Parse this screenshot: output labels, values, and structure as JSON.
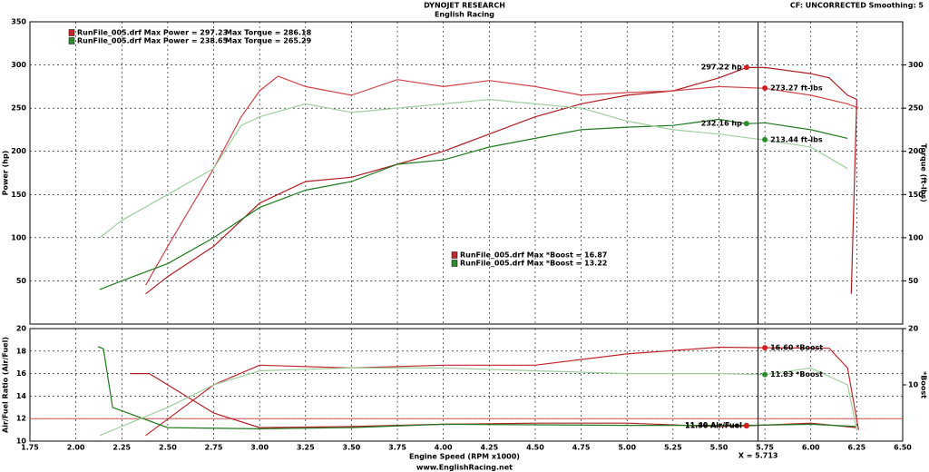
{
  "header": {
    "title": "DYNOJET RESEARCH",
    "subtitle": "English Racing",
    "settings": "CF: UNCORRECTED  Smoothing: 5",
    "footer": "www.EnglishRacing.net"
  },
  "chart_data": [
    {
      "type": "line",
      "ylabel": "Power (hp)",
      "y2label": "Torque (ft-lbs)",
      "xlim": [
        1.75,
        6.5
      ],
      "ylim": [
        0,
        350
      ],
      "y2lim": [
        0,
        350
      ],
      "yticks": [
        50,
        100,
        150,
        200,
        250,
        300,
        350
      ],
      "y2ticks": [
        50,
        100,
        150,
        200,
        250,
        300
      ],
      "grid": true,
      "legend": [
        {
          "color": "#c0282d",
          "texts": [
            "RunFile_005.drf Max Power = 297.23",
            "Max Torque = 286.18"
          ]
        },
        {
          "color": "#2e8b2e",
          "texts": [
            "RunFile_005.drf Max Power = 238.65",
            "Max Torque = 265.29"
          ]
        }
      ],
      "series": [
        {
          "color": "#b01e24",
          "x": [
            2.38,
            2.5,
            2.75,
            3.0,
            3.25,
            3.5,
            3.75,
            4.0,
            4.25,
            4.5,
            4.75,
            5.0,
            5.25,
            5.5,
            5.65,
            5.75,
            6.0,
            6.1,
            6.2,
            6.25,
            6.22
          ],
          "values": [
            35,
            55,
            90,
            140,
            165,
            170,
            185,
            200,
            220,
            240,
            255,
            265,
            270,
            285,
            297,
            297,
            290,
            285,
            265,
            260,
            35
          ]
        },
        {
          "color": "#d0454a",
          "axis": "y2",
          "x": [
            2.38,
            2.5,
            2.75,
            2.9,
            3.0,
            3.1,
            3.25,
            3.5,
            3.75,
            4.0,
            4.25,
            4.5,
            4.75,
            5.0,
            5.25,
            5.5,
            5.75,
            6.0,
            6.2,
            6.26
          ],
          "values": [
            45,
            90,
            180,
            240,
            270,
            287,
            275,
            265,
            283,
            275,
            282,
            275,
            265,
            268,
            270,
            275,
            273,
            265,
            255,
            250
          ]
        },
        {
          "color": "#1f7a1f",
          "x": [
            2.13,
            2.25,
            2.5,
            2.75,
            3.0,
            3.25,
            3.5,
            3.75,
            4.0,
            4.25,
            4.5,
            4.75,
            5.0,
            5.25,
            5.5,
            5.65,
            5.75,
            6.0,
            6.2
          ],
          "values": [
            40,
            50,
            70,
            100,
            135,
            155,
            165,
            185,
            190,
            205,
            215,
            225,
            228,
            230,
            237,
            232,
            233,
            225,
            215
          ]
        },
        {
          "color": "#9fcf9f",
          "axis": "y2",
          "x": [
            2.13,
            2.25,
            2.5,
            2.75,
            2.9,
            3.0,
            3.25,
            3.5,
            3.75,
            4.0,
            4.25,
            4.5,
            4.75,
            5.0,
            5.25,
            5.5,
            5.75,
            6.0,
            6.2
          ],
          "values": [
            100,
            120,
            150,
            180,
            230,
            240,
            255,
            245,
            250,
            255,
            260,
            255,
            250,
            235,
            225,
            220,
            213,
            205,
            180
          ]
        }
      ],
      "markers": [
        {
          "x": 5.65,
          "value": 297.22,
          "label": "297.22 hp",
          "color": "#d02020"
        },
        {
          "x": 5.75,
          "value": 273.27,
          "label": "273.27 ft-lbs",
          "color": "#d02020"
        },
        {
          "x": 5.65,
          "value": 232.16,
          "label": "232.16 hp",
          "color": "#2e8b2e"
        },
        {
          "x": 5.75,
          "value": 213.44,
          "label": "213.44 ft-lbs",
          "color": "#2e8b2e"
        }
      ],
      "notes": [
        {
          "color": "#c0282d",
          "text": "RunFile_005.drf Max *Boost = 16.87"
        },
        {
          "color": "#2e8b2e",
          "text": "RunFile_005.drf Max *Boost = 13.22"
        }
      ],
      "cursor": 5.713
    },
    {
      "type": "line",
      "ylabel": "Air/Fuel Ratio (Air/Fuel)",
      "y2label": "*Boost",
      "xlabel": "Engine Speed (RPM x1000)",
      "xlim": [
        1.75,
        6.5
      ],
      "ylim": [
        10,
        20
      ],
      "y2lim": [
        0,
        20
      ],
      "xticks": [
        1.75,
        {
          "value": 2,
          "label": "2.00"
        },
        2.25,
        {
          "value": 2.5,
          "label": "2.50"
        },
        2.75,
        {
          "value": 3,
          "label": "3.00"
        },
        3.25,
        {
          "value": 3.5,
          "label": "3.50"
        },
        3.75,
        {
          "value": 4,
          "label": "4.00"
        },
        4.25,
        {
          "value": 4.5,
          "label": "4.50"
        },
        4.75,
        {
          "value": 5,
          "label": "5.00"
        },
        5.25,
        {
          "value": 5.5,
          "label": "5.50"
        },
        5.75,
        {
          "value": 6,
          "label": "6.00"
        },
        6.25,
        {
          "value": 6.5,
          "label": "6.50"
        }
      ],
      "yticks": [
        10,
        12,
        14,
        16,
        18,
        20
      ],
      "y2ticks": [
        10,
        20
      ],
      "grid": true,
      "reference_line": 12,
      "series": [
        {
          "color": "#b01e24",
          "x": [
            2.3,
            2.4,
            2.5,
            2.75,
            3.0,
            3.5,
            4.0,
            4.5,
            5.0,
            5.5,
            5.65,
            6.0,
            6.25
          ],
          "values": [
            16,
            16,
            15,
            12.5,
            11.2,
            11.3,
            11.5,
            11.6,
            11.6,
            11.3,
            11.36,
            11.6,
            11.2
          ]
        },
        {
          "color": "#c0282d",
          "axis": "y2",
          "x": [
            2.38,
            2.75,
            3.0,
            3.5,
            4.0,
            4.5,
            5.0,
            5.5,
            5.75,
            6.1,
            6.2,
            6.26
          ],
          "values": [
            1,
            10,
            13.5,
            13,
            13.5,
            13.5,
            15.5,
            16.7,
            16.6,
            16.5,
            13,
            2
          ]
        },
        {
          "color": "#1f7a1f",
          "x": [
            2.12,
            2.15,
            2.2,
            2.5,
            3.0,
            3.5,
            4.0,
            5.0,
            5.65,
            6.0,
            6.25
          ],
          "values": [
            18.4,
            18.2,
            13,
            11.2,
            11.1,
            11.2,
            11.5,
            11.4,
            11.4,
            11.5,
            11.3
          ]
        },
        {
          "color": "#9fcf9f",
          "axis": "y2",
          "x": [
            2.13,
            2.5,
            2.75,
            3.0,
            3.5,
            4.0,
            4.5,
            5.0,
            5.5,
            5.75,
            6.0,
            6.2,
            6.25
          ],
          "values": [
            1,
            6,
            10,
            12.5,
            13,
            13,
            12.5,
            12,
            12,
            11.83,
            13,
            10,
            2
          ]
        }
      ],
      "markers": [
        {
          "x": 5.75,
          "value": 16.6,
          "label": "16.60 *Boost",
          "color": "#d02020",
          "axis": "y2"
        },
        {
          "x": 5.75,
          "value": 11.83,
          "label": "11.83 *Boost",
          "color": "#2e8b2e",
          "axis": "y2"
        },
        {
          "x": 5.65,
          "value": 11.4,
          "label": "11.40 Air/Fuel",
          "color": "#2e8b2e"
        },
        {
          "x": 5.65,
          "value": 11.36,
          "label": "11.36 Air/Fuel",
          "color": "#d02020"
        }
      ],
      "cursor": 5.713,
      "cursor_label": "X = 5.713"
    }
  ]
}
